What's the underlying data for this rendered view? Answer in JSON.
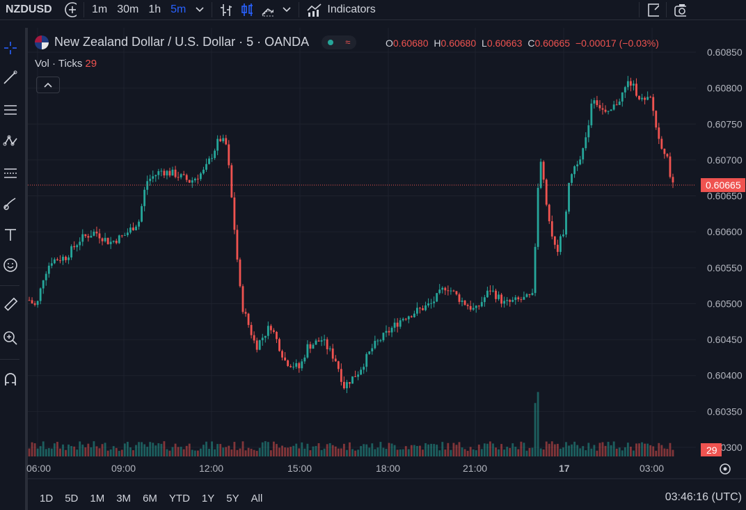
{
  "toolbar": {
    "symbol": "NZDUSD",
    "timeframes": [
      "1m",
      "30m",
      "1h",
      "5m"
    ],
    "active_timeframe": "5m",
    "indicators_label": "Indicators"
  },
  "legend": {
    "title": "New Zealand Dollar / U.S. Dollar · 5 · OANDA",
    "ohlc": {
      "o_label": "O",
      "o": "0.60680",
      "h_label": "H",
      "h": "0.60680",
      "l_label": "L",
      "l": "0.60663",
      "c_label": "C",
      "c": "0.60665",
      "change": "−0.00017 (−0.03%)"
    },
    "vol_label": "Vol · Ticks",
    "vol_value": "29"
  },
  "price_axis": {
    "ticks": [
      "0.60850",
      "0.60800",
      "0.60750",
      "0.60700",
      "0.60650",
      "0.60600",
      "0.60550",
      "0.60500",
      "0.60450",
      "0.60400",
      "0.60350",
      "0.60300"
    ],
    "last_price": "0.60665",
    "vol_badge": "29"
  },
  "time_axis": {
    "ticks": [
      "06:00",
      "09:00",
      "12:00",
      "15:00",
      "18:00",
      "21:00",
      "17",
      "03:00"
    ]
  },
  "bottom": {
    "ranges": [
      "1D",
      "5D",
      "1M",
      "3M",
      "6M",
      "YTD",
      "1Y",
      "5Y",
      "All"
    ],
    "clock": "03:46:16 (UTC)"
  },
  "colors": {
    "up": "#26a69a",
    "down": "#ef5350",
    "accent": "#2962ff",
    "background": "#131722"
  },
  "chart_data": {
    "type": "candlestick",
    "title": "New Zealand Dollar / U.S. Dollar · 5 · OANDA",
    "ylim": [
      0.6029,
      0.6086
    ],
    "x_ticks": [
      "06:00",
      "09:00",
      "12:00",
      "15:00",
      "18:00",
      "21:00",
      "17",
      "03:00"
    ],
    "series": [
      {
        "name": "price",
        "points": [
          [
            "05:45",
            0.60505
          ],
          [
            "06:00",
            0.60495
          ],
          [
            "06:15",
            0.6054
          ],
          [
            "06:30",
            0.6056
          ],
          [
            "07:00",
            0.60565
          ],
          [
            "07:30",
            0.6059
          ],
          [
            "08:00",
            0.606
          ],
          [
            "08:30",
            0.60585
          ],
          [
            "09:00",
            0.60595
          ],
          [
            "09:30",
            0.60615
          ],
          [
            "09:45",
            0.6067
          ],
          [
            "10:15",
            0.60685
          ],
          [
            "10:45",
            0.6068
          ],
          [
            "11:15",
            0.6067
          ],
          [
            "11:45",
            0.60685
          ],
          [
            "12:15",
            0.6073
          ],
          [
            "12:30",
            0.6072
          ],
          [
            "12:45",
            0.6061
          ],
          [
            "13:00",
            0.605
          ],
          [
            "13:30",
            0.6044
          ],
          [
            "14:00",
            0.6047
          ],
          [
            "14:30",
            0.6042
          ],
          [
            "15:00",
            0.6041
          ],
          [
            "15:15",
            0.6044
          ],
          [
            "15:45",
            0.6045
          ],
          [
            "16:15",
            0.6042
          ],
          [
            "16:30",
            0.60385
          ],
          [
            "17:00",
            0.60405
          ],
          [
            "17:30",
            0.6044
          ],
          [
            "18:00",
            0.6046
          ],
          [
            "18:30",
            0.6048
          ],
          [
            "19:00",
            0.6049
          ],
          [
            "19:30",
            0.605
          ],
          [
            "20:00",
            0.60525
          ],
          [
            "20:30",
            0.60505
          ],
          [
            "21:00",
            0.6049
          ],
          [
            "21:30",
            0.6052
          ],
          [
            "22:00",
            0.605
          ],
          [
            "22:30",
            0.60505
          ],
          [
            "23:00",
            0.6051
          ],
          [
            "23:05",
            0.6065
          ],
          [
            "23:15",
            0.607
          ],
          [
            "23:30",
            0.6062
          ],
          [
            "23:45",
            0.6057
          ],
          [
            "00:00",
            0.606
          ],
          [
            "00:15",
            0.6068
          ],
          [
            "00:30",
            0.607
          ],
          [
            "00:45",
            0.6072
          ],
          [
            "01:00",
            0.6079
          ],
          [
            "01:30",
            0.6076
          ],
          [
            "02:00",
            0.6079
          ],
          [
            "02:15",
            0.6081
          ],
          [
            "02:45",
            0.6078
          ],
          [
            "03:00",
            0.60785
          ],
          [
            "03:15",
            0.6073
          ],
          [
            "03:30",
            0.6071
          ],
          [
            "03:45",
            0.60665
          ]
        ]
      }
    ],
    "last_price": 0.60665,
    "volume_last": 29
  }
}
